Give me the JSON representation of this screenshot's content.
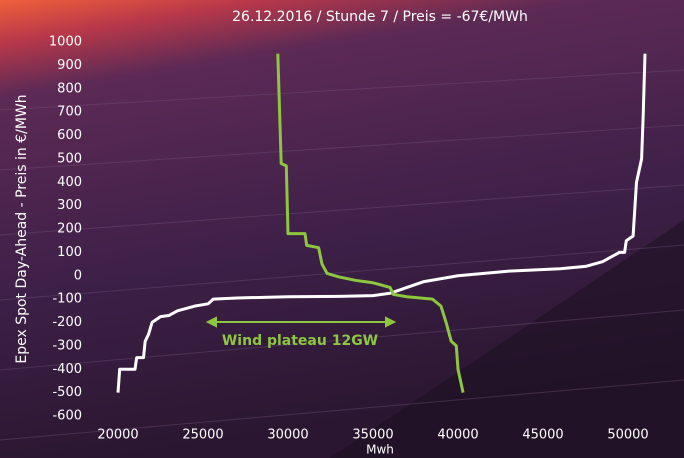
{
  "chart_data": {
    "type": "line",
    "title": "26.12.2016 / Stunde 7 / Preis = -67€/MWh",
    "x_label": "Mwh",
    "y_label": "Epex Spot Day-Ahead - Preis in €/MWh",
    "annotation": "Wind plateau  12GW",
    "xlim": [
      19000,
      52500
    ],
    "xticks": [
      20000,
      25000,
      30000,
      35000,
      40000,
      45000,
      50000
    ],
    "ylim": [
      -600,
      1000
    ],
    "yticks": [
      -600,
      -500,
      -400,
      -300,
      -200,
      -100,
      0,
      100,
      200,
      300,
      400,
      500,
      600,
      700,
      800,
      900,
      1000
    ],
    "grid": false,
    "series": [
      {
        "color": "#ffffff",
        "x": [
          20000,
          20100,
          21000,
          21100,
          21500,
          21600,
          21800,
          22000,
          22500,
          23000,
          23500,
          24500,
          25300,
          25600,
          27000,
          30000,
          33000,
          35000,
          36000,
          37000,
          38000,
          40000,
          43000,
          46000,
          47500,
          48500,
          49500,
          49800,
          49900,
          50300,
          50500,
          50800,
          50900,
          51000
        ],
        "values": [
          -500,
          -400,
          -400,
          -350,
          -350,
          -280,
          -250,
          -200,
          -175,
          -170,
          -150,
          -130,
          -120,
          -100,
          -95,
          -90,
          -88,
          -85,
          -75,
          -50,
          -25,
          0,
          20,
          30,
          40,
          60,
          100,
          100,
          150,
          170,
          400,
          500,
          700,
          950
        ]
      },
      {
        "color": "#8dc63f",
        "x": [
          29400,
          29600,
          29900,
          30000,
          31000,
          31100,
          31800,
          32000,
          32300,
          33000,
          34000,
          35000,
          36000,
          36200,
          37000,
          38500,
          39000,
          39300,
          39600,
          39900,
          40000,
          40300
        ],
        "values": [
          950,
          480,
          470,
          180,
          180,
          130,
          120,
          50,
          10,
          -5,
          -20,
          -30,
          -50,
          -80,
          -90,
          -100,
          -130,
          -200,
          -280,
          -300,
          -400,
          -500
        ]
      }
    ]
  }
}
